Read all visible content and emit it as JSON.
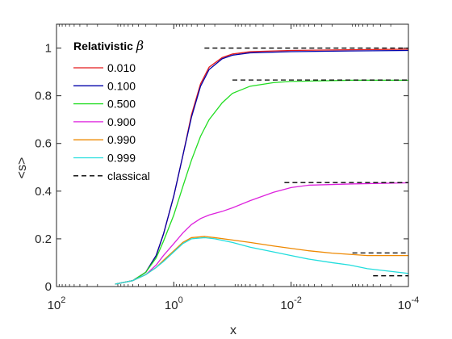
{
  "chart_data": {
    "type": "line",
    "title": "",
    "xlabel": "x",
    "ylabel": "<s>",
    "x_scale": "log",
    "x_reversed": true,
    "xlim": [
      100,
      0.0001
    ],
    "ylim": [
      0,
      1.1
    ],
    "x_ticks": [
      100,
      1,
      0.01,
      0.0001
    ],
    "x_tick_labels": [
      {
        "base": "10",
        "exp": "2"
      },
      {
        "base": "10",
        "exp": "0"
      },
      {
        "base": "10",
        "exp": "-2"
      },
      {
        "base": "10",
        "exp": "-4"
      }
    ],
    "y_ticks": [
      0,
      0.2,
      0.4,
      0.6,
      0.8,
      1
    ],
    "y_tick_labels": [
      "0",
      "0.2",
      "0.4",
      "0.6",
      "0.8",
      "1"
    ],
    "grid": false,
    "legend": {
      "position": "top-left",
      "title": "Relativistic",
      "title_symbol": "β"
    },
    "series": [
      {
        "name": "0.010",
        "color": "#e31a1c",
        "style": "solid",
        "points": [
          [
            10,
            0.01
          ],
          [
            5,
            0.025
          ],
          [
            3,
            0.06
          ],
          [
            2,
            0.13
          ],
          [
            1.5,
            0.22
          ],
          [
            1,
            0.38
          ],
          [
            0.7,
            0.55
          ],
          [
            0.5,
            0.72
          ],
          [
            0.35,
            0.85
          ],
          [
            0.25,
            0.92
          ],
          [
            0.15,
            0.96
          ],
          [
            0.1,
            0.975
          ],
          [
            0.05,
            0.985
          ],
          [
            0.01,
            0.99
          ],
          [
            0.001,
            0.993
          ],
          [
            0.0001,
            0.995
          ]
        ]
      },
      {
        "name": "0.100",
        "color": "#0000aa",
        "style": "solid",
        "points": [
          [
            10,
            0.01
          ],
          [
            5,
            0.025
          ],
          [
            3,
            0.06
          ],
          [
            2,
            0.13
          ],
          [
            1.5,
            0.22
          ],
          [
            1,
            0.38
          ],
          [
            0.7,
            0.55
          ],
          [
            0.5,
            0.71
          ],
          [
            0.35,
            0.84
          ],
          [
            0.25,
            0.91
          ],
          [
            0.15,
            0.955
          ],
          [
            0.1,
            0.97
          ],
          [
            0.05,
            0.98
          ],
          [
            0.01,
            0.985
          ],
          [
            0.001,
            0.988
          ],
          [
            0.0001,
            0.99
          ]
        ]
      },
      {
        "name": "0.500",
        "color": "#22dd22",
        "style": "solid",
        "points": [
          [
            10,
            0.01
          ],
          [
            5,
            0.025
          ],
          [
            3,
            0.06
          ],
          [
            2,
            0.12
          ],
          [
            1.5,
            0.19
          ],
          [
            1,
            0.3
          ],
          [
            0.7,
            0.42
          ],
          [
            0.5,
            0.53
          ],
          [
            0.35,
            0.63
          ],
          [
            0.25,
            0.7
          ],
          [
            0.15,
            0.77
          ],
          [
            0.1,
            0.81
          ],
          [
            0.05,
            0.84
          ],
          [
            0.02,
            0.855
          ],
          [
            0.01,
            0.86
          ],
          [
            0.001,
            0.865
          ],
          [
            0.0001,
            0.865
          ]
        ]
      },
      {
        "name": "0.900",
        "color": "#dd22dd",
        "style": "solid",
        "points": [
          [
            10,
            0.01
          ],
          [
            5,
            0.025
          ],
          [
            3,
            0.05
          ],
          [
            2,
            0.09
          ],
          [
            1.5,
            0.13
          ],
          [
            1,
            0.18
          ],
          [
            0.7,
            0.225
          ],
          [
            0.5,
            0.26
          ],
          [
            0.35,
            0.285
          ],
          [
            0.25,
            0.3
          ],
          [
            0.15,
            0.315
          ],
          [
            0.1,
            0.33
          ],
          [
            0.05,
            0.36
          ],
          [
            0.02,
            0.395
          ],
          [
            0.01,
            0.415
          ],
          [
            0.005,
            0.425
          ],
          [
            0.001,
            0.43
          ],
          [
            0.0001,
            0.435
          ]
        ]
      },
      {
        "name": "0.990",
        "color": "#ee8800",
        "style": "solid",
        "points": [
          [
            10,
            0.01
          ],
          [
            5,
            0.025
          ],
          [
            3,
            0.05
          ],
          [
            2,
            0.08
          ],
          [
            1.5,
            0.11
          ],
          [
            1,
            0.15
          ],
          [
            0.7,
            0.185
          ],
          [
            0.5,
            0.205
          ],
          [
            0.3,
            0.21
          ],
          [
            0.2,
            0.205
          ],
          [
            0.1,
            0.195
          ],
          [
            0.05,
            0.185
          ],
          [
            0.02,
            0.17
          ],
          [
            0.01,
            0.16
          ],
          [
            0.005,
            0.15
          ],
          [
            0.002,
            0.14
          ],
          [
            0.001,
            0.135
          ],
          [
            0.0005,
            0.13
          ],
          [
            0.0001,
            0.13
          ]
        ]
      },
      {
        "name": "0.999",
        "color": "#22dddd",
        "style": "solid",
        "points": [
          [
            10,
            0.01
          ],
          [
            5,
            0.025
          ],
          [
            3,
            0.05
          ],
          [
            2,
            0.08
          ],
          [
            1.5,
            0.105
          ],
          [
            1,
            0.145
          ],
          [
            0.7,
            0.18
          ],
          [
            0.5,
            0.2
          ],
          [
            0.3,
            0.205
          ],
          [
            0.2,
            0.2
          ],
          [
            0.1,
            0.185
          ],
          [
            0.05,
            0.165
          ],
          [
            0.02,
            0.145
          ],
          [
            0.01,
            0.13
          ],
          [
            0.005,
            0.115
          ],
          [
            0.002,
            0.1
          ],
          [
            0.001,
            0.09
          ],
          [
            0.0005,
            0.075
          ],
          [
            0.0001,
            0.055
          ]
        ]
      },
      {
        "name": "classical",
        "color": "#000000",
        "style": "dashed",
        "segments": [
          {
            "x": [
              0.3,
              0.0001
            ],
            "y": 1.0
          },
          {
            "x": [
              0.1,
              0.0001
            ],
            "y": 0.866
          },
          {
            "x": [
              0.013,
              0.0001
            ],
            "y": 0.436
          },
          {
            "x": [
              0.0009,
              0.0001
            ],
            "y": 0.141
          },
          {
            "x": [
              0.0004,
              0.0001
            ],
            "y": 0.045
          }
        ]
      }
    ]
  }
}
